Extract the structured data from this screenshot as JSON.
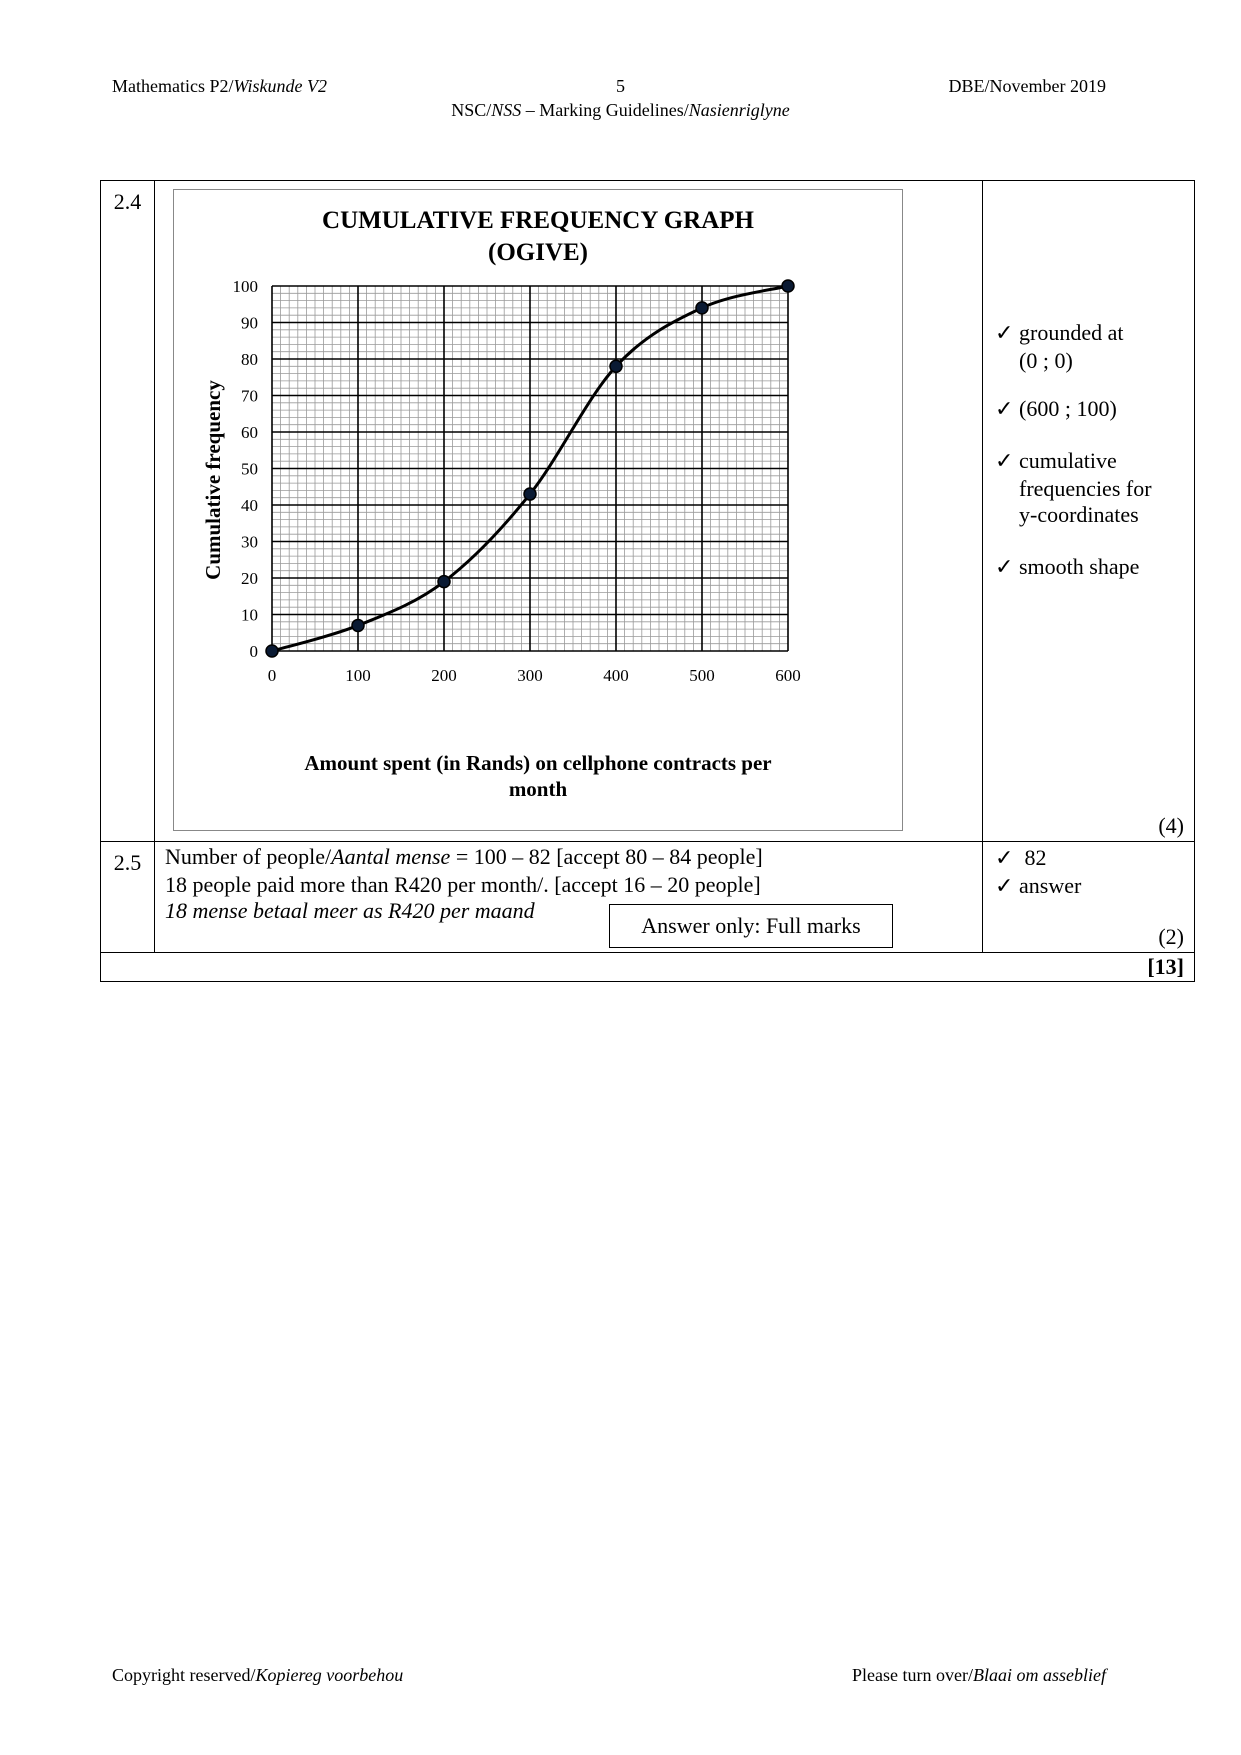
{
  "header": {
    "left": "Mathematics P2/",
    "left_italic": "Wiskunde V2",
    "page_number": "5",
    "right": "DBE/November 2019",
    "sub_prefix": "NSC/",
    "sub_italic": "NSS",
    "sub_middle": " – Marking Guidelines/",
    "sub_italic2": "Nasienriglyne"
  },
  "q24": {
    "number": "2.4",
    "marks": [
      {
        "tick": "✓",
        "lines": [
          "grounded at",
          "(0 ; 0)"
        ]
      },
      {
        "tick": "✓",
        "lines": [
          "(600 ; 100)"
        ]
      },
      {
        "tick": "✓",
        "lines": [
          "cumulative",
          "frequencies for",
          "y-coordinates"
        ]
      },
      {
        "tick": "✓",
        "lines": [
          "smooth shape"
        ]
      }
    ],
    "total": "(4)"
  },
  "chart_data": {
    "type": "line",
    "title": "CUMULATIVE FREQUENCY GRAPH",
    "subtitle": "(OGIVE)",
    "xlabel": "Amount spent (in Rands) on cellphone contracts per",
    "xlabel2": "month",
    "ylabel": "Cumulative frequency",
    "x": [
      0,
      100,
      200,
      300,
      400,
      500,
      600
    ],
    "y": [
      0,
      7,
      19,
      43,
      78,
      94,
      100
    ],
    "xlim": [
      0,
      600
    ],
    "ylim": [
      0,
      100
    ],
    "xticks": [
      "0",
      "100",
      "200",
      "300",
      "400",
      "500",
      "600"
    ],
    "yticks": [
      "0",
      "10",
      "20",
      "30",
      "40",
      "50",
      "60",
      "70",
      "80",
      "90",
      "100"
    ],
    "grid": true,
    "smooth": true,
    "colors": {
      "line": "#000000",
      "marker": "#0a1a33"
    }
  },
  "q25": {
    "number": "2.5",
    "line1_a": "Number of people/",
    "line1_italic": "Aantal mense",
    "line1_b": " = 100 – 82  [accept 80 – 84 people]",
    "line2": "18 people paid more than R420 per month/.   [accept 16 – 20 people]",
    "line3_italic": "18 mense betaal meer as R420 per maand",
    "box": "Answer only: Full marks",
    "marks": [
      {
        "tick": "✓",
        "text": " 82"
      },
      {
        "tick": "✓",
        "text": "answer"
      }
    ],
    "total": "(2)"
  },
  "grand_total": "[13]",
  "footer": {
    "left": "Copyright reserved/",
    "left_italic": "Kopiereg voorbehou",
    "right": "Please turn over/",
    "right_italic": "Blaai om asseblief"
  }
}
